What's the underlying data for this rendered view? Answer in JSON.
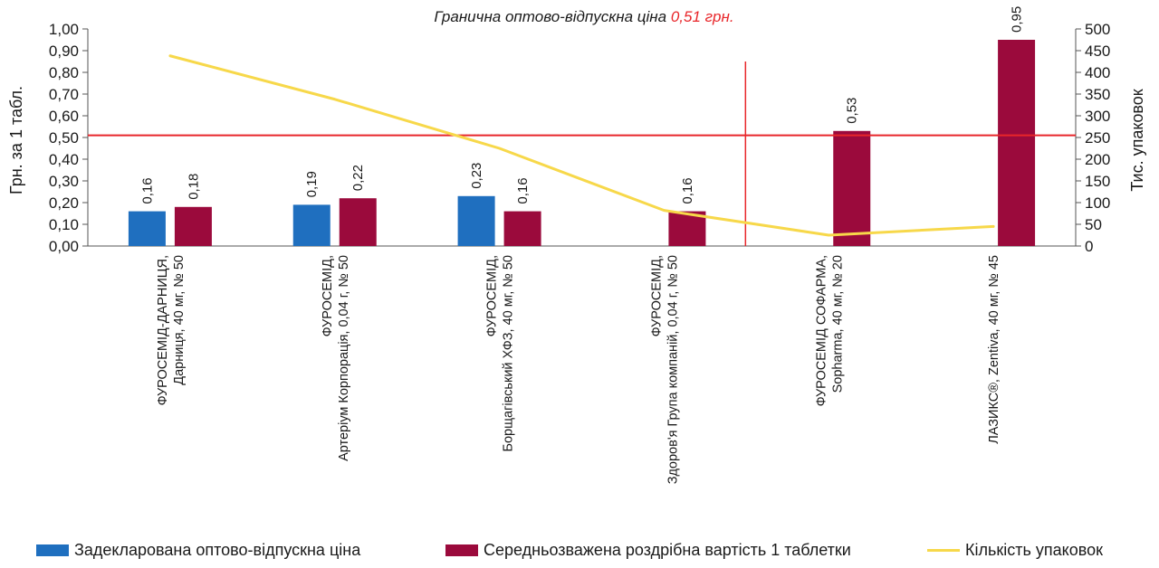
{
  "chart_data": {
    "type": "bar",
    "title_prefix": "Гранична оптово-відпускна ціна ",
    "title_highlight": "0,51 грн.",
    "threshold": 0.51,
    "ylabel_left": "Грн. за 1 табл.",
    "ylabel_right": "Тис. упаковок",
    "ylim_left": [
      0,
      1.0
    ],
    "ylim_right": [
      0,
      500
    ],
    "yticks_left": [
      "0,00",
      "0,10",
      "0,20",
      "0,30",
      "0,40",
      "0,50",
      "0,60",
      "0,70",
      "0,80",
      "0,90",
      "1,00"
    ],
    "yticks_right": [
      "0",
      "50",
      "100",
      "150",
      "200",
      "250",
      "300",
      "350",
      "400",
      "450",
      "500"
    ],
    "categories": [
      [
        "ФУРОСЕМІД-ДАРНИЦЯ,",
        "Дарниця, 40 мг, № 50"
      ],
      [
        "ФУРОСЕМІД,",
        "Артеріум Корпорація, 0,04 г, № 50"
      ],
      [
        "ФУРОСЕМІД,",
        "Борщагівський ХФЗ, 40 мг, № 50"
      ],
      [
        "ФУРОСЕМІД,",
        "Здоров'я Група компаній, 0,04 г, № 50"
      ],
      [
        "ФУРОСЕМІД СОФАРМА,",
        "Sopharma, 40 мг, № 20"
      ],
      [
        "ЛАЗИКС®, Zentiva, 40 мг, № 45"
      ]
    ],
    "series": [
      {
        "name": "Задекларована оптово-відпускна ціна",
        "type": "bar",
        "axis": "left",
        "color": "#1f6fbf",
        "values": [
          0.16,
          0.19,
          0.23,
          null,
          null,
          null
        ],
        "labels": [
          "0,16",
          "0,19",
          "0,23",
          "",
          "",
          ""
        ]
      },
      {
        "name": "Середньозважена роздрібна вартість 1 таблетки",
        "type": "bar",
        "axis": "left",
        "color": "#9b0a3c",
        "values": [
          0.18,
          0.22,
          0.16,
          0.16,
          0.53,
          0.95
        ],
        "labels": [
          "0,18",
          "0,22",
          "0,16",
          "0,16",
          "0,53",
          "0,95"
        ]
      },
      {
        "name": "Кількість упаковок",
        "type": "line",
        "axis": "right",
        "color": "#f7d84a",
        "values": [
          438,
          338,
          225,
          82,
          25,
          45
        ]
      }
    ],
    "colors": {
      "threshold_line": "#e8262a",
      "title_highlight": "#e8262a"
    }
  }
}
